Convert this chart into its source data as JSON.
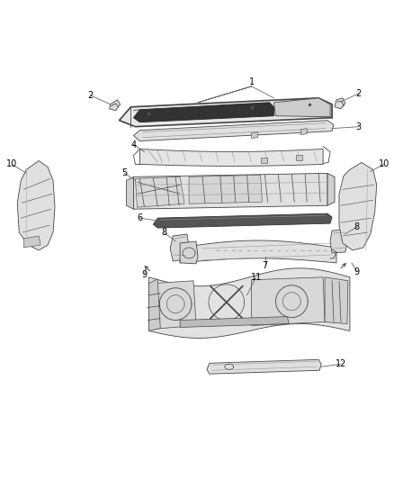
{
  "background_color": "#ffffff",
  "line_color": "#444444",
  "label_color": "#000000",
  "figsize": [
    4.38,
    5.33
  ],
  "dpi": 100,
  "lw": 0.6,
  "lw_thick": 1.2,
  "label_fs": 7.0
}
